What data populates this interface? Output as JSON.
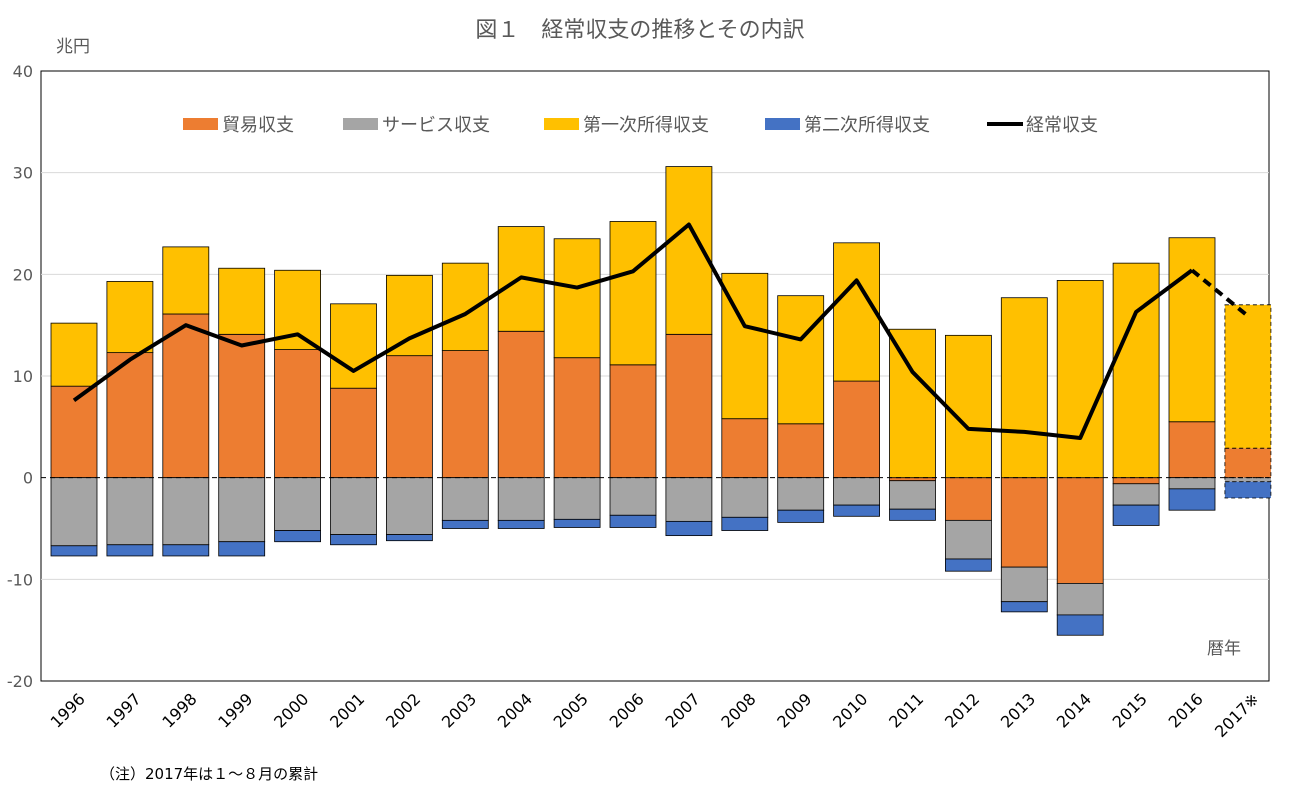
{
  "chart_data": {
    "type": "bar",
    "title": "図１　経常収支の推移とその内訳",
    "ylabel": "兆円",
    "xlabel": "暦年",
    "note": "（注）2017年は１～８月の累計",
    "ylim": [
      -20,
      40
    ],
    "yticks": [
      "-20",
      "-10",
      "0",
      "10",
      "20",
      "30",
      "40"
    ],
    "grid": true,
    "legend_position": "top",
    "categories": [
      "1996",
      "1997",
      "1998",
      "1999",
      "2000",
      "2001",
      "2002",
      "2003",
      "2004",
      "2005",
      "2006",
      "2007",
      "2008",
      "2009",
      "2010",
      "2011",
      "2012",
      "2013",
      "2014",
      "2015",
      "2016",
      "2017※"
    ],
    "partial_category": "2017※",
    "series": [
      {
        "name": "貿易収支",
        "kind": "bar",
        "color": "#ED7D31",
        "values": [
          9.0,
          12.3,
          16.1,
          14.1,
          12.6,
          8.8,
          12.0,
          12.5,
          14.4,
          11.8,
          11.1,
          14.1,
          5.8,
          5.3,
          9.5,
          -0.3,
          -4.2,
          -8.8,
          -10.4,
          -0.6,
          5.5,
          2.9
        ]
      },
      {
        "name": "サービス収支",
        "kind": "bar",
        "color": "#A5A5A5",
        "values": [
          -6.7,
          -6.6,
          -6.6,
          -6.3,
          -5.2,
          -5.6,
          -5.6,
          -4.2,
          -4.2,
          -4.1,
          -3.7,
          -4.3,
          -3.9,
          -3.2,
          -2.7,
          -2.8,
          -3.8,
          -3.4,
          -3.1,
          -2.1,
          -1.1,
          -0.4
        ]
      },
      {
        "name": "第一次所得収支",
        "kind": "bar",
        "color": "#FFC000",
        "values": [
          6.2,
          7.0,
          6.6,
          6.5,
          7.8,
          8.3,
          7.9,
          8.6,
          10.3,
          11.7,
          14.1,
          16.5,
          14.3,
          12.6,
          13.6,
          14.6,
          14.0,
          17.7,
          19.4,
          21.1,
          18.1,
          14.1
        ]
      },
      {
        "name": "第二次所得収支",
        "kind": "bar",
        "color": "#4472C4",
        "values": [
          -1.0,
          -1.1,
          -1.1,
          -1.4,
          -1.1,
          -1.0,
          -0.6,
          -0.8,
          -0.8,
          -0.8,
          -1.2,
          -1.4,
          -1.3,
          -1.2,
          -1.1,
          -1.1,
          -1.2,
          -1.0,
          -2.0,
          -2.0,
          -2.1,
          -1.6
        ]
      },
      {
        "name": "経常収支",
        "kind": "line",
        "color": "#000000",
        "values": [
          7.6,
          11.6,
          15.0,
          13.0,
          14.1,
          10.5,
          13.7,
          16.1,
          19.7,
          18.7,
          20.3,
          24.9,
          14.9,
          13.6,
          19.4,
          10.4,
          4.8,
          4.5,
          3.9,
          16.3,
          20.4,
          15.9
        ]
      }
    ]
  }
}
